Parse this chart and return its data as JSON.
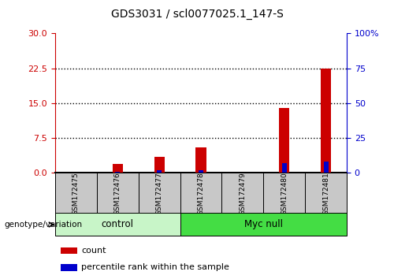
{
  "title": "GDS3031 / scl0077025.1_147-S",
  "samples": [
    "GSM172475",
    "GSM172476",
    "GSM172477",
    "GSM172478",
    "GSM172479",
    "GSM172480",
    "GSM172481"
  ],
  "count_values": [
    0,
    2.0,
    3.5,
    5.5,
    0,
    14.0,
    22.5
  ],
  "percentile_values": [
    0,
    1.0,
    2.0,
    2.2,
    0,
    7.0,
    8.0
  ],
  "left_ylim": [
    0,
    30
  ],
  "left_yticks": [
    0,
    7.5,
    15,
    22.5,
    30
  ],
  "right_ylim": [
    0,
    100
  ],
  "right_yticks": [
    0,
    25,
    50,
    75,
    100
  ],
  "right_yticklabels": [
    "0",
    "25",
    "50",
    "75",
    "100%"
  ],
  "dotted_lines": [
    7.5,
    15,
    22.5
  ],
  "bar_width": 0.25,
  "count_color": "#cc0000",
  "percentile_color": "#0000cc",
  "groups": [
    {
      "label": "control",
      "indices": [
        0,
        1,
        2
      ],
      "color": "#c8f5c8"
    },
    {
      "label": "Myc null",
      "indices": [
        3,
        4,
        5,
        6
      ],
      "color": "#44dd44"
    }
  ],
  "sample_label_bg": "#c8c8c8",
  "legend_count_label": "count",
  "legend_percentile_label": "percentile rank within the sample",
  "genotype_label": "genotype/variation"
}
